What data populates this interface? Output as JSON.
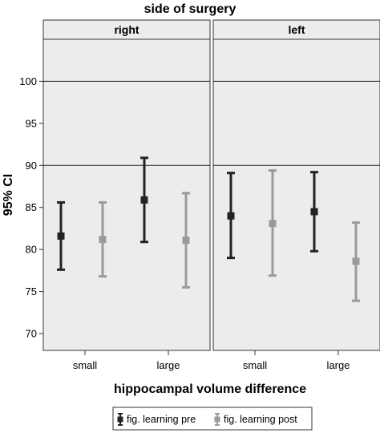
{
  "chart_data": {
    "type": "errorbar",
    "title": "side of surgery",
    "panels": [
      "right",
      "left"
    ],
    "categories": [
      "small",
      "large"
    ],
    "xlabel": "hippocampal volume difference",
    "ylabel": "95% CI",
    "ylim": [
      68,
      105
    ],
    "yticks": [
      70,
      75,
      80,
      85,
      90,
      95,
      100
    ],
    "reference_lines": [
      90,
      100
    ],
    "grid": false,
    "legend_position": "bottom",
    "series": [
      {
        "name": "fig. learning pre",
        "color": "#222222",
        "values": {
          "right": [
            {
              "category": "small",
              "mean": 81.6,
              "low": 77.6,
              "high": 85.6
            },
            {
              "category": "large",
              "mean": 85.9,
              "low": 80.9,
              "high": 90.9
            }
          ],
          "left": [
            {
              "category": "small",
              "mean": 84.0,
              "low": 79.0,
              "high": 89.1
            },
            {
              "category": "large",
              "mean": 84.5,
              "low": 79.8,
              "high": 89.2
            }
          ]
        }
      },
      {
        "name": "fig. learning post",
        "color": "#9a9a9a",
        "values": {
          "right": [
            {
              "category": "small",
              "mean": 81.2,
              "low": 76.8,
              "high": 85.6
            },
            {
              "category": "large",
              "mean": 81.1,
              "low": 75.5,
              "high": 86.7
            }
          ],
          "left": [
            {
              "category": "small",
              "mean": 83.1,
              "low": 76.9,
              "high": 89.4
            },
            {
              "category": "large",
              "mean": 78.6,
              "low": 73.9,
              "high": 83.2
            }
          ]
        }
      }
    ]
  }
}
